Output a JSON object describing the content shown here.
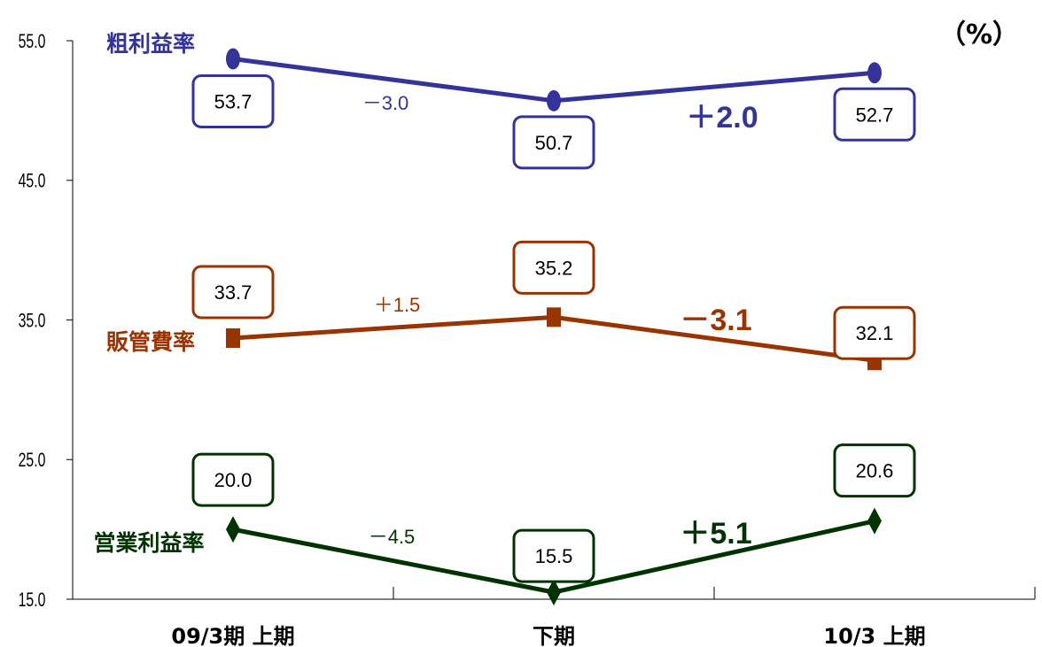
{
  "unit_label": "（%）",
  "chart_data": {
    "type": "line",
    "categories": [
      "09/3期  上期",
      "下期",
      "10/3  上期"
    ],
    "y_ticks": [
      "55.0",
      "45.0",
      "35.0",
      "25.0",
      "15.0"
    ],
    "ylim": [
      15,
      55
    ],
    "grid": false,
    "series": [
      {
        "name": "粗利益率",
        "color": "#333399",
        "marker": "circle",
        "values": [
          53.7,
          50.7,
          52.7
        ],
        "labels": [
          "53.7",
          "50.7",
          "52.7"
        ],
        "changes": [
          "－3.0",
          "＋2.0"
        ]
      },
      {
        "name": "販管費率",
        "color": "#993300",
        "marker": "square",
        "values": [
          33.7,
          35.2,
          32.1
        ],
        "labels": [
          "33.7",
          "35.2",
          "32.1"
        ],
        "changes": [
          "＋1.5",
          "－3.1"
        ]
      },
      {
        "name": "営業利益率",
        "color": "#003300",
        "marker": "diamond",
        "values": [
          20.0,
          15.5,
          20.6
        ],
        "labels": [
          "20.0",
          "15.5",
          "20.6"
        ],
        "changes": [
          "－4.5",
          "＋5.1"
        ]
      }
    ]
  }
}
